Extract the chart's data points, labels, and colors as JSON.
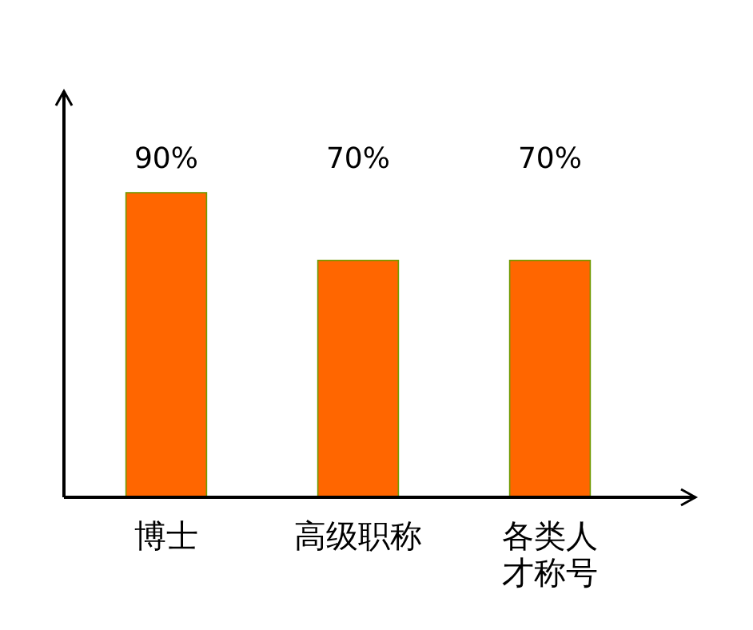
{
  "chart_data": {
    "type": "bar",
    "categories": [
      "博士",
      "高级职称",
      "各类人才称号"
    ],
    "values": [
      90,
      70,
      70
    ],
    "color": "#ff6600",
    "ylim": [
      0,
      120
    ],
    "data_labels": true,
    "value_labels": [
      "90%",
      "70%",
      "70%"
    ],
    "tick_labels": "x"
  }
}
